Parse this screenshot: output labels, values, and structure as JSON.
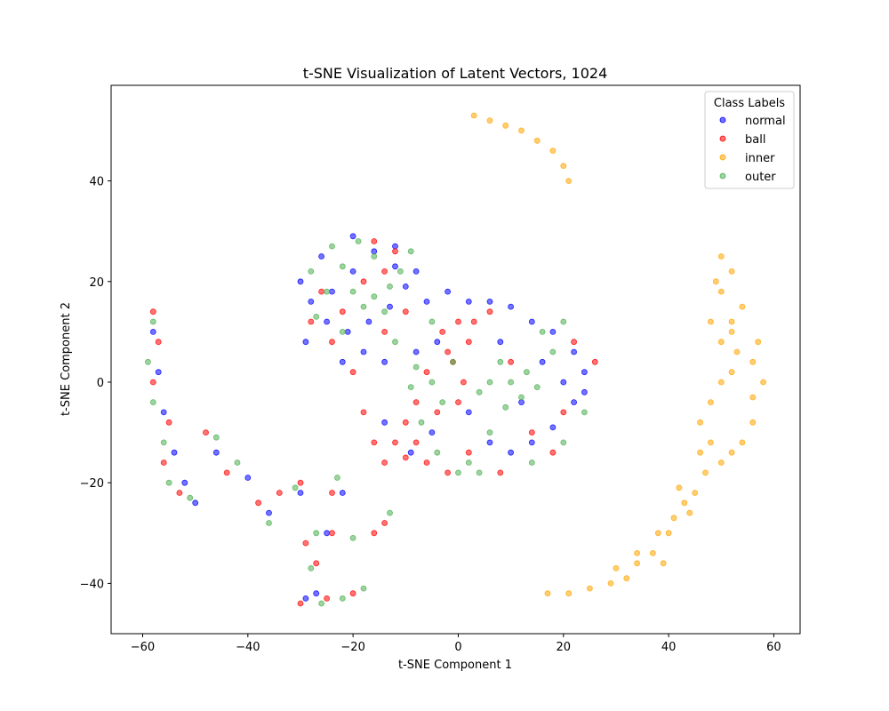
{
  "chart_data": {
    "type": "scatter",
    "title": "t-SNE Visualization of Latent Vectors, 1024",
    "xlabel": "t-SNE Component 1",
    "ylabel": "t-SNE Component 2",
    "xlim": [
      -66,
      65
    ],
    "ylim": [
      -50,
      59
    ],
    "xticks": [
      -60,
      -40,
      -20,
      0,
      20,
      40,
      60
    ],
    "xtick_labels": [
      "−60",
      "−40",
      "−20",
      "0",
      "20",
      "40",
      "60"
    ],
    "yticks": [
      -40,
      -20,
      0,
      20,
      40
    ],
    "ytick_labels": [
      "−40",
      "−20",
      "0",
      "20",
      "40"
    ],
    "grid": false,
    "legend": {
      "title": "Class Labels",
      "position": "top-right"
    },
    "series": [
      {
        "name": "normal",
        "color": "#0000ff",
        "points": [
          [
            -16,
            26
          ],
          [
            -20,
            22
          ],
          [
            -24,
            18
          ],
          [
            -28,
            16
          ],
          [
            -25,
            12
          ],
          [
            -21,
            10
          ],
          [
            -17,
            12
          ],
          [
            -13,
            15
          ],
          [
            -10,
            19
          ],
          [
            -12,
            23
          ],
          [
            -18,
            6
          ],
          [
            -14,
            4
          ],
          [
            -22,
            4
          ],
          [
            -29,
            8
          ],
          [
            -30,
            20
          ],
          [
            -26,
            25
          ],
          [
            -20,
            29
          ],
          [
            -12,
            27
          ],
          [
            -8,
            22
          ],
          [
            -6,
            16
          ],
          [
            -2,
            18
          ],
          [
            2,
            16
          ],
          [
            6,
            16
          ],
          [
            10,
            15
          ],
          [
            14,
            12
          ],
          [
            18,
            10
          ],
          [
            22,
            6
          ],
          [
            24,
            2
          ],
          [
            22,
            -4
          ],
          [
            18,
            -9
          ],
          [
            14,
            -12
          ],
          [
            10,
            -14
          ],
          [
            6,
            -12
          ],
          [
            2,
            -6
          ],
          [
            -4,
            8
          ],
          [
            -8,
            6
          ],
          [
            16,
            4
          ],
          [
            20,
            0
          ],
          [
            24,
            -2
          ],
          [
            12,
            -4
          ],
          [
            8,
            8
          ],
          [
            -9,
            -14
          ],
          [
            -5,
            -10
          ],
          [
            -14,
            -8
          ],
          [
            -58,
            10
          ],
          [
            -57,
            2
          ],
          [
            -56,
            -6
          ],
          [
            -54,
            -14
          ],
          [
            -52,
            -20
          ],
          [
            -50,
            -24
          ],
          [
            -46,
            -14
          ],
          [
            -40,
            -19
          ],
          [
            -36,
            -26
          ],
          [
            -30,
            -22
          ],
          [
            -22,
            -22
          ],
          [
            -25,
            -30
          ],
          [
            -29,
            -43
          ],
          [
            -27,
            -42
          ]
        ]
      },
      {
        "name": "ball",
        "color": "#ff0000",
        "points": [
          [
            0,
            12
          ],
          [
            2,
            8
          ],
          [
            -1,
            4
          ],
          [
            1,
            0
          ],
          [
            0,
            -4
          ],
          [
            -2,
            6
          ],
          [
            3,
            12
          ],
          [
            -3,
            10
          ],
          [
            -6,
            2
          ],
          [
            -8,
            -4
          ],
          [
            -10,
            -8
          ],
          [
            -12,
            -12
          ],
          [
            -10,
            -15
          ],
          [
            -8,
            -12
          ],
          [
            -14,
            -16
          ],
          [
            -16,
            -12
          ],
          [
            -6,
            -16
          ],
          [
            -18,
            -6
          ],
          [
            -4,
            -6
          ],
          [
            -18,
            20
          ],
          [
            -14,
            22
          ],
          [
            -22,
            14
          ],
          [
            -26,
            18
          ],
          [
            -28,
            12
          ],
          [
            -16,
            28
          ],
          [
            -12,
            26
          ],
          [
            -24,
            8
          ],
          [
            -20,
            2
          ],
          [
            -14,
            10
          ],
          [
            -10,
            14
          ],
          [
            6,
            14
          ],
          [
            10,
            4
          ],
          [
            14,
            -10
          ],
          [
            18,
            -14
          ],
          [
            22,
            8
          ],
          [
            26,
            4
          ],
          [
            20,
            -6
          ],
          [
            8,
            -18
          ],
          [
            2,
            -14
          ],
          [
            -2,
            -18
          ],
          [
            -58,
            14
          ],
          [
            -57,
            8
          ],
          [
            -58,
            0
          ],
          [
            -55,
            -8
          ],
          [
            -56,
            -16
          ],
          [
            -53,
            -22
          ],
          [
            -48,
            -10
          ],
          [
            -44,
            -18
          ],
          [
            -38,
            -24
          ],
          [
            -34,
            -22
          ],
          [
            -30,
            -20
          ],
          [
            -24,
            -22
          ],
          [
            -29,
            -32
          ],
          [
            -24,
            -30
          ],
          [
            -16,
            -30
          ],
          [
            -14,
            -28
          ],
          [
            -30,
            -44
          ],
          [
            -25,
            -43
          ],
          [
            -20,
            -42
          ],
          [
            -27,
            -36
          ]
        ]
      },
      {
        "name": "inner",
        "color": "#ffa500",
        "points": [
          [
            3,
            53
          ],
          [
            6,
            52
          ],
          [
            9,
            51
          ],
          [
            12,
            50
          ],
          [
            15,
            48
          ],
          [
            18,
            46
          ],
          [
            20,
            43
          ],
          [
            21,
            40
          ],
          [
            17,
            -42
          ],
          [
            21,
            -42
          ],
          [
            25,
            -41
          ],
          [
            29,
            -40
          ],
          [
            32,
            -39
          ],
          [
            34,
            -36
          ],
          [
            37,
            -34
          ],
          [
            38,
            -30
          ],
          [
            41,
            -27
          ],
          [
            43,
            -24
          ],
          [
            45,
            -22
          ],
          [
            47,
            -18
          ],
          [
            50,
            -16
          ],
          [
            52,
            -14
          ],
          [
            54,
            -12
          ],
          [
            56,
            -8
          ],
          [
            48,
            -12
          ],
          [
            46,
            -8
          ],
          [
            48,
            -4
          ],
          [
            50,
            0
          ],
          [
            52,
            2
          ],
          [
            53,
            6
          ],
          [
            56,
            4
          ],
          [
            58,
            0
          ],
          [
            50,
            8
          ],
          [
            48,
            12
          ],
          [
            52,
            12
          ],
          [
            54,
            15
          ],
          [
            50,
            18
          ],
          [
            52,
            22
          ],
          [
            50,
            25
          ],
          [
            44,
            -26
          ],
          [
            40,
            -30
          ],
          [
            34,
            -34
          ],
          [
            30,
            -37
          ],
          [
            39,
            -36
          ],
          [
            42,
            -21
          ],
          [
            46,
            -14
          ],
          [
            56,
            -3
          ],
          [
            57,
            8
          ],
          [
            49,
            20
          ],
          [
            52,
            10
          ]
        ]
      },
      {
        "name": "outer",
        "color": "#4caf50",
        "points": [
          [
            10,
            0
          ],
          [
            13,
            2
          ],
          [
            8,
            4
          ],
          [
            12,
            -3
          ],
          [
            15,
            -1
          ],
          [
            6,
            0
          ],
          [
            9,
            -5
          ],
          [
            4,
            -2
          ],
          [
            -5,
            0
          ],
          [
            -8,
            3
          ],
          [
            -3,
            -4
          ],
          [
            -9,
            -1
          ],
          [
            -16,
            17
          ],
          [
            -13,
            19
          ],
          [
            -18,
            15
          ],
          [
            -14,
            14
          ],
          [
            -20,
            18
          ],
          [
            -11,
            22
          ],
          [
            -22,
            23
          ],
          [
            -25,
            18
          ],
          [
            -22,
            10
          ],
          [
            -27,
            13
          ],
          [
            -16,
            25
          ],
          [
            -19,
            28
          ],
          [
            -24,
            27
          ],
          [
            -28,
            22
          ],
          [
            -9,
            26
          ],
          [
            -12,
            8
          ],
          [
            -5,
            12
          ],
          [
            6,
            -10
          ],
          [
            2,
            -16
          ],
          [
            -4,
            -14
          ],
          [
            0,
            -18
          ],
          [
            4,
            -18
          ],
          [
            18,
            6
          ],
          [
            20,
            12
          ],
          [
            16,
            10
          ],
          [
            24,
            -6
          ],
          [
            20,
            -12
          ],
          [
            14,
            -16
          ],
          [
            -7,
            -8
          ],
          [
            -1,
            4
          ],
          [
            -58,
            12
          ],
          [
            -59,
            4
          ],
          [
            -58,
            -4
          ],
          [
            -56,
            -12
          ],
          [
            -55,
            -20
          ],
          [
            -51,
            -23
          ],
          [
            -46,
            -11
          ],
          [
            -42,
            -16
          ],
          [
            -36,
            -28
          ],
          [
            -31,
            -21
          ],
          [
            -23,
            -19
          ],
          [
            -27,
            -30
          ],
          [
            -20,
            -31
          ],
          [
            -13,
            -26
          ],
          [
            -28,
            -37
          ],
          [
            -26,
            -44
          ],
          [
            -18,
            -41
          ],
          [
            -22,
            -43
          ]
        ]
      }
    ]
  }
}
